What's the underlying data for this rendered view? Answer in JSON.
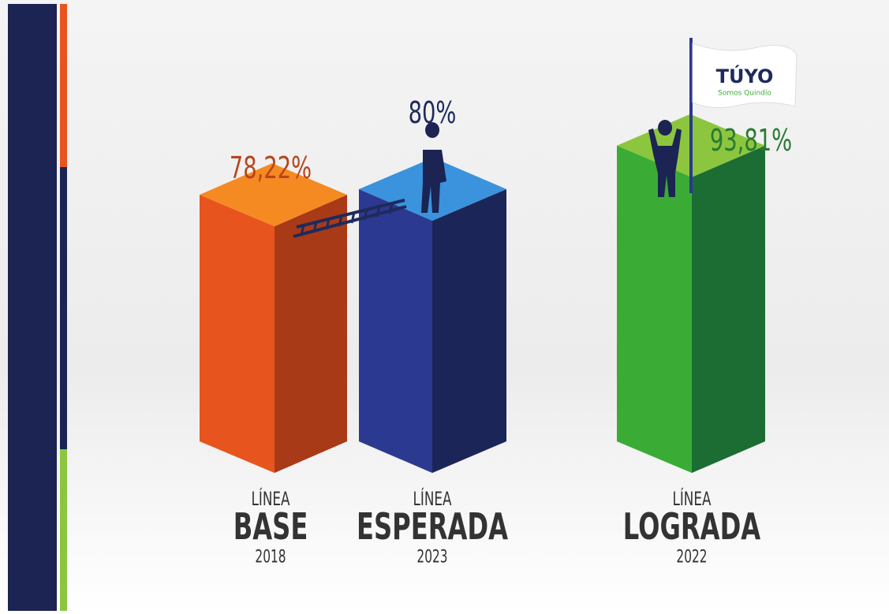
{
  "chart_data": {
    "type": "bar3d",
    "categories": [
      {
        "line1": "LÍNEA",
        "line2": "BASE",
        "line3": "2018"
      },
      {
        "line1": "LÍNEA",
        "line2": "ESPERADA",
        "line3": "2023"
      },
      {
        "line1": "LÍNEA",
        "line2": "LOGRADA",
        "line3": "2022"
      }
    ],
    "values": [
      78.22,
      80,
      93.81
    ],
    "value_labels": [
      "78,22%",
      "80%",
      "93,81%"
    ],
    "colors": [
      "#e8541e",
      "#2b3990",
      "#3aac35"
    ],
    "side_colors": [
      "#a93a18",
      "#1c2558",
      "#1b6d33"
    ],
    "top_colors": [
      "#f58a22",
      "#3a93dc",
      "#8cc63f"
    ],
    "label_colors": [
      "#b8441b",
      "#1f2a5c",
      "#2a7a32"
    ],
    "logo": {
      "text": "TÚYO",
      "tagline": "Somos Quindío"
    }
  }
}
